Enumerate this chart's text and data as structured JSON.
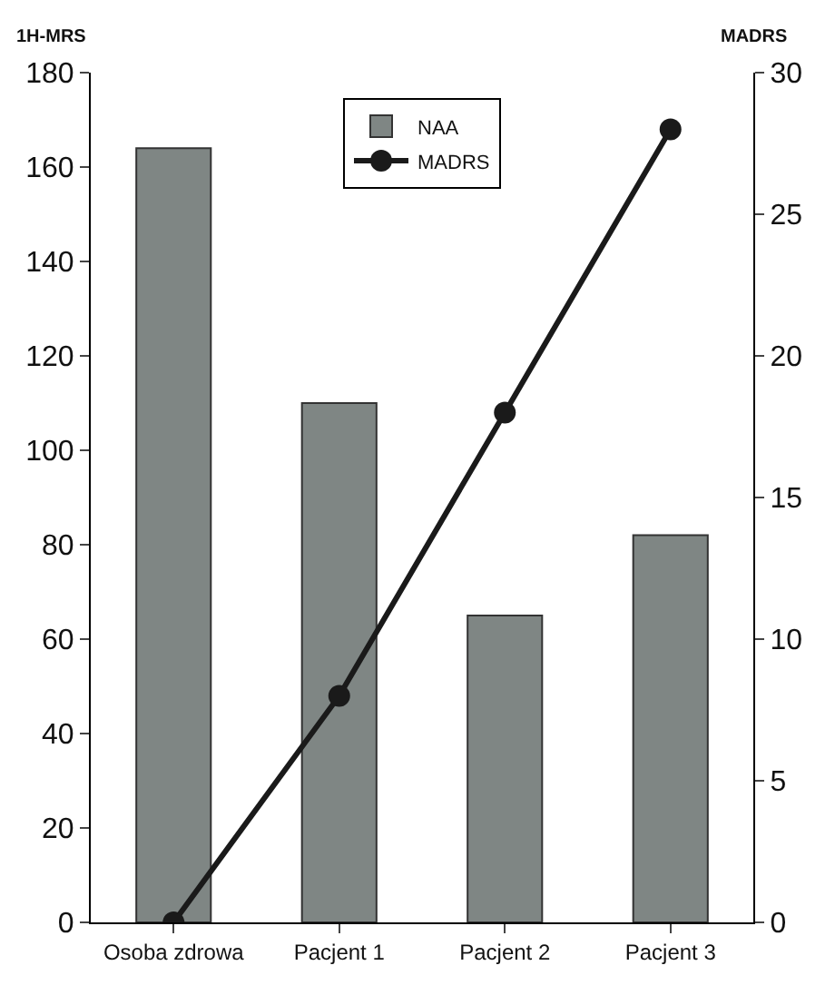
{
  "chart_data": {
    "type": "bar",
    "ylabel": "1H-MRS",
    "y2label": "MADRS",
    "categories": [
      "Osoba zdrowa",
      "Pacjent 1",
      "Pacjent 2",
      "Pacjent 3"
    ],
    "series": [
      {
        "name": "NAA",
        "color": "#7f8684",
        "values": [
          164,
          110,
          65,
          82
        ]
      },
      {
        "name": "MADRS",
        "type": "line",
        "axis": "y2",
        "color": "#1a1a1a",
        "marker": "circle",
        "line_style": "solid",
        "values": [
          0,
          8,
          18,
          28
        ]
      }
    ],
    "ylim": [
      0,
      180
    ],
    "yticks": [
      0,
      20,
      40,
      60,
      80,
      100,
      120,
      140,
      160,
      180
    ],
    "y2lim": [
      0,
      30
    ],
    "y2ticks": [
      0,
      5,
      10,
      15,
      20,
      25,
      30
    ],
    "legend": "top"
  }
}
